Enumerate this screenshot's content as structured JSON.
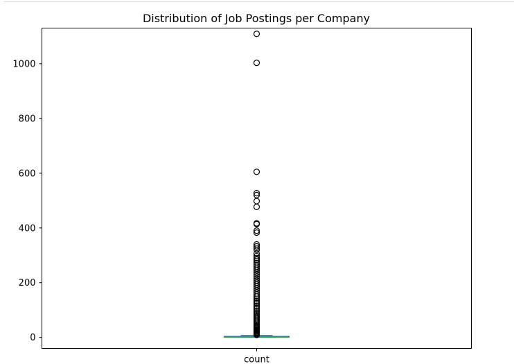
{
  "chart_data": {
    "type": "box",
    "title": "Distribution of Job Postings per Company",
    "xlabel": "",
    "ylabel": "",
    "categories": [
      "count"
    ],
    "ylim": [
      -40,
      1130
    ],
    "yticks": [
      0,
      200,
      400,
      600,
      800,
      1000
    ],
    "grid": false,
    "box": {
      "whisker_low": 1,
      "q1": 1,
      "median": 2,
      "q3": 4,
      "whisker_high": 8,
      "outliers": [
        1109,
        1003,
        605,
        527,
        520,
        498,
        477,
        417,
        414,
        390,
        383,
        340,
        333,
        327,
        320,
        306,
        297,
        290,
        284,
        278,
        272,
        265,
        258,
        251,
        244,
        236,
        229,
        222,
        214,
        207,
        200,
        193,
        186,
        179,
        172,
        165,
        158,
        151,
        145,
        139,
        133,
        127,
        121,
        115,
        109,
        103,
        97,
        91,
        85,
        80,
        75,
        70,
        65,
        60,
        55,
        50,
        46,
        42,
        38,
        34,
        30,
        27,
        24,
        21,
        18,
        15,
        13,
        11,
        9
      ]
    },
    "colors": {
      "box": "#1f77b4",
      "median": "#2ca02c",
      "outlier_edge": "#000000"
    }
  }
}
